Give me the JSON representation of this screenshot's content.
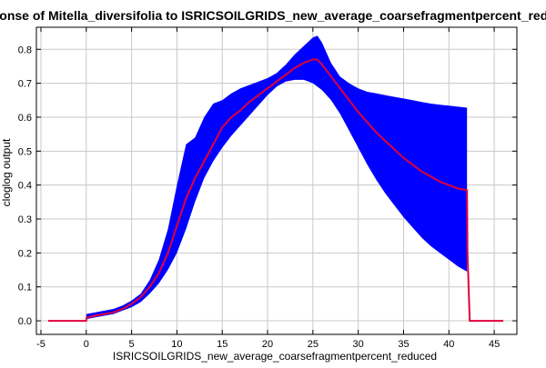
{
  "chart_data": {
    "type": "line",
    "title": "Response of Mitella_diversifolia to ISRICSOILGRIDS_new_average_coarsefragmentpercent_reduced",
    "xlabel": "ISRICSOILGRIDS_new_average_coarsefragmentpercent_reduced",
    "ylabel": "cloglog output",
    "xlim": [
      -5.5,
      47.5
    ],
    "ylim": [
      -0.04,
      0.865
    ],
    "xticks": [
      "-5",
      "0",
      "5",
      "10",
      "15",
      "20",
      "25",
      "30",
      "35",
      "40",
      "45"
    ],
    "yticks": [
      "0.0",
      "0.1",
      "0.2",
      "0.3",
      "0.4",
      "0.5",
      "0.6",
      "0.7",
      "0.8"
    ],
    "grid": true,
    "colors": {
      "mean_line": "#e0003c",
      "band": "#0000ff",
      "grid": "#c8c8c8"
    },
    "series": [
      {
        "x": [
          -4.2,
          0,
          0.05,
          1,
          2,
          3,
          4,
          5,
          6,
          7,
          8,
          9,
          10,
          11,
          12,
          13,
          14,
          15,
          16,
          17,
          18,
          19,
          20,
          21,
          22,
          23,
          24,
          25,
          25.5,
          26,
          27,
          28,
          29,
          30,
          31,
          32,
          33,
          34,
          35,
          36,
          37,
          38,
          39,
          40,
          41,
          42,
          42.05,
          42.3,
          46
        ],
        "values": [
          0,
          0,
          0.01,
          0.015,
          0.02,
          0.025,
          0.035,
          0.05,
          0.07,
          0.1,
          0.14,
          0.2,
          0.28,
          0.36,
          0.42,
          0.47,
          0.52,
          0.57,
          0.6,
          0.62,
          0.645,
          0.665,
          0.685,
          0.705,
          0.725,
          0.745,
          0.76,
          0.77,
          0.77,
          0.755,
          0.72,
          0.685,
          0.65,
          0.615,
          0.585,
          0.555,
          0.53,
          0.505,
          0.48,
          0.46,
          0.44,
          0.425,
          0.41,
          0.4,
          0.39,
          0.385,
          0.2,
          0,
          0
        ]
      }
    ],
    "confidence_band": {
      "x": [
        0,
        1,
        2,
        3,
        4,
        5,
        6,
        7,
        8,
        9,
        10,
        11,
        12,
        13,
        14,
        15,
        16,
        17,
        18,
        19,
        20,
        21,
        22,
        23,
        24,
        25,
        25.5,
        26,
        27,
        28,
        29,
        30,
        31,
        32,
        33,
        34,
        35,
        36,
        37,
        38,
        39,
        40,
        41,
        42
      ],
      "upper": [
        0.02,
        0.025,
        0.03,
        0.035,
        0.045,
        0.06,
        0.08,
        0.12,
        0.18,
        0.27,
        0.4,
        0.52,
        0.54,
        0.6,
        0.64,
        0.65,
        0.67,
        0.685,
        0.695,
        0.705,
        0.715,
        0.73,
        0.755,
        0.785,
        0.81,
        0.835,
        0.84,
        0.82,
        0.76,
        0.72,
        0.7,
        0.685,
        0.675,
        0.67,
        0.665,
        0.66,
        0.655,
        0.65,
        0.645,
        0.64,
        0.637,
        0.634,
        0.631,
        0.628
      ],
      "lower": [
        0.005,
        0.01,
        0.015,
        0.02,
        0.03,
        0.04,
        0.055,
        0.08,
        0.11,
        0.15,
        0.2,
        0.27,
        0.35,
        0.42,
        0.47,
        0.51,
        0.545,
        0.575,
        0.605,
        0.635,
        0.665,
        0.69,
        0.705,
        0.71,
        0.71,
        0.7,
        0.69,
        0.68,
        0.65,
        0.61,
        0.56,
        0.51,
        0.46,
        0.415,
        0.375,
        0.34,
        0.305,
        0.275,
        0.245,
        0.22,
        0.2,
        0.18,
        0.16,
        0.145
      ]
    }
  }
}
